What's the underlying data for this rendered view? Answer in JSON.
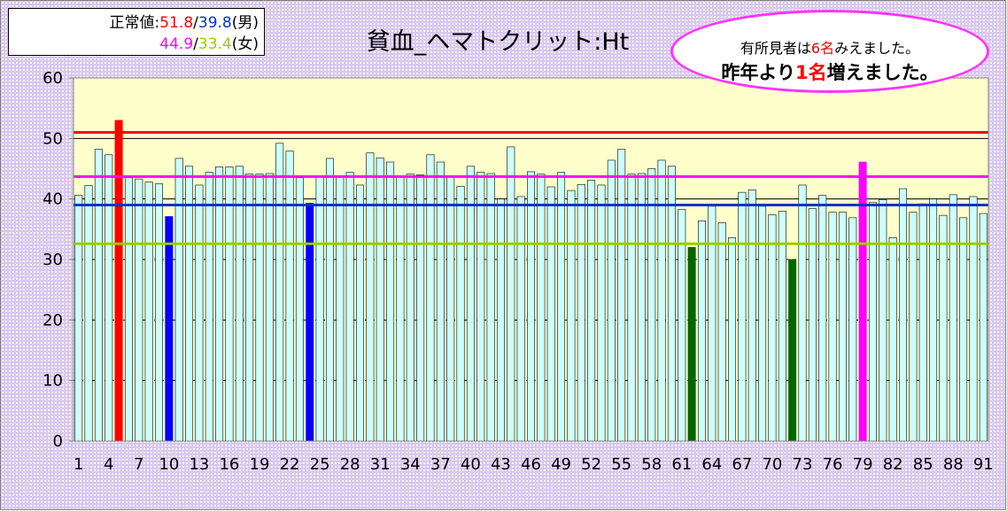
{
  "norm": {
    "label": "正常値:",
    "male_upper": "51.8",
    "slash1": "/",
    "male_lower": "39.8",
    "male_label": "(男)",
    "female_upper": "44.9",
    "slash2": "/",
    "female_lower": "33.4",
    "female_label": "(女)"
  },
  "findings": {
    "line1_prefix": "有所見者は",
    "line1_count": "6名",
    "line1_suffix": "みえました。",
    "line2_prefix": "昨年より",
    "line2_count": "1名",
    "line2_suffix": "増えました。"
  },
  "colors": {
    "bar_normal": "#ccffff",
    "male_ref": "#ff0000",
    "male_low_ref": "#0033cc",
    "female_ref": "#ff00ff",
    "female_low_ref": "#99cc00",
    "plot_bg": "#ffffcc",
    "outer_bg": "#d9c8ee"
  },
  "chart_data": {
    "type": "bar",
    "title": "貧血_ヘマトクリット:Ht",
    "xlabel": "",
    "ylabel": "",
    "ylim": [
      0,
      60
    ],
    "yticks": [
      0,
      10,
      20,
      30,
      40,
      50,
      60
    ],
    "xtick_labels": [
      "1",
      "4",
      "7",
      "10",
      "13",
      "16",
      "19",
      "22",
      "25",
      "28",
      "31",
      "34",
      "37",
      "40",
      "43",
      "46",
      "49",
      "52",
      "55",
      "58",
      "61",
      "64",
      "67",
      "70",
      "73",
      "76",
      "79",
      "82",
      "85",
      "88",
      "91"
    ],
    "grid": "horizontal, y=40 and y=50 solid",
    "reference_lines": [
      {
        "value": 51.0,
        "color": "#ff0000"
      },
      {
        "value": 43.7,
        "color": "#ff00ff"
      },
      {
        "value": 39.0,
        "color": "#0033cc"
      },
      {
        "value": 32.6,
        "color": "#99cc00"
      }
    ],
    "categories": [
      1,
      2,
      3,
      4,
      5,
      6,
      7,
      8,
      9,
      10,
      11,
      12,
      13,
      14,
      15,
      16,
      17,
      18,
      19,
      20,
      21,
      22,
      23,
      24,
      25,
      26,
      27,
      28,
      29,
      30,
      31,
      32,
      33,
      34,
      35,
      36,
      37,
      38,
      39,
      40,
      41,
      42,
      43,
      44,
      45,
      46,
      47,
      48,
      49,
      50,
      51,
      52,
      53,
      54,
      55,
      56,
      57,
      58,
      59,
      60,
      61,
      62,
      63,
      64,
      65,
      66,
      67,
      68,
      69,
      70,
      71,
      72,
      73,
      74,
      75,
      76,
      77,
      78,
      79,
      80,
      81,
      82,
      83,
      84,
      85,
      86,
      87,
      88,
      89,
      90,
      91
    ],
    "values": [
      40.6,
      42.2,
      48.2,
      47.3,
      53.0,
      43.5,
      43.3,
      42.8,
      42.5,
      37.1,
      46.7,
      45.4,
      42.3,
      44.4,
      45.3,
      45.3,
      45.4,
      44.1,
      44.1,
      44.2,
      49.2,
      47.9,
      43.5,
      39.3,
      43.6,
      46.7,
      43.7,
      44.4,
      42.3,
      47.6,
      46.8,
      46.1,
      43.8,
      44.1,
      44.0,
      47.3,
      46.1,
      43.6,
      42.1,
      45.4,
      44.4,
      44.2,
      40.0,
      48.6,
      40.4,
      44.5,
      44.1,
      42.0,
      44.4,
      41.4,
      42.4,
      43.1,
      42.3,
      46.4,
      48.2,
      44.1,
      44.2,
      45.0,
      46.4,
      45.4,
      38.3,
      32.0,
      36.4,
      38.8,
      36.1,
      33.6,
      41.1,
      41.5,
      38.8,
      37.4,
      38.0,
      30.0,
      42.3,
      38.4,
      40.6,
      37.8,
      37.8,
      36.9,
      46.1,
      39.4,
      39.9,
      33.6,
      41.7,
      37.8,
      39.2,
      40.0,
      37.3,
      40.7,
      36.9,
      40.4,
      37.6
    ],
    "highlights": [
      {
        "index": 5,
        "color": "#ff0000"
      },
      {
        "index": 10,
        "color": "#0000ff"
      },
      {
        "index": 24,
        "color": "#0000ff"
      },
      {
        "index": 62,
        "color": "#006600"
      },
      {
        "index": 72,
        "color": "#006600"
      },
      {
        "index": 79,
        "color": "#ff00ff"
      }
    ]
  }
}
